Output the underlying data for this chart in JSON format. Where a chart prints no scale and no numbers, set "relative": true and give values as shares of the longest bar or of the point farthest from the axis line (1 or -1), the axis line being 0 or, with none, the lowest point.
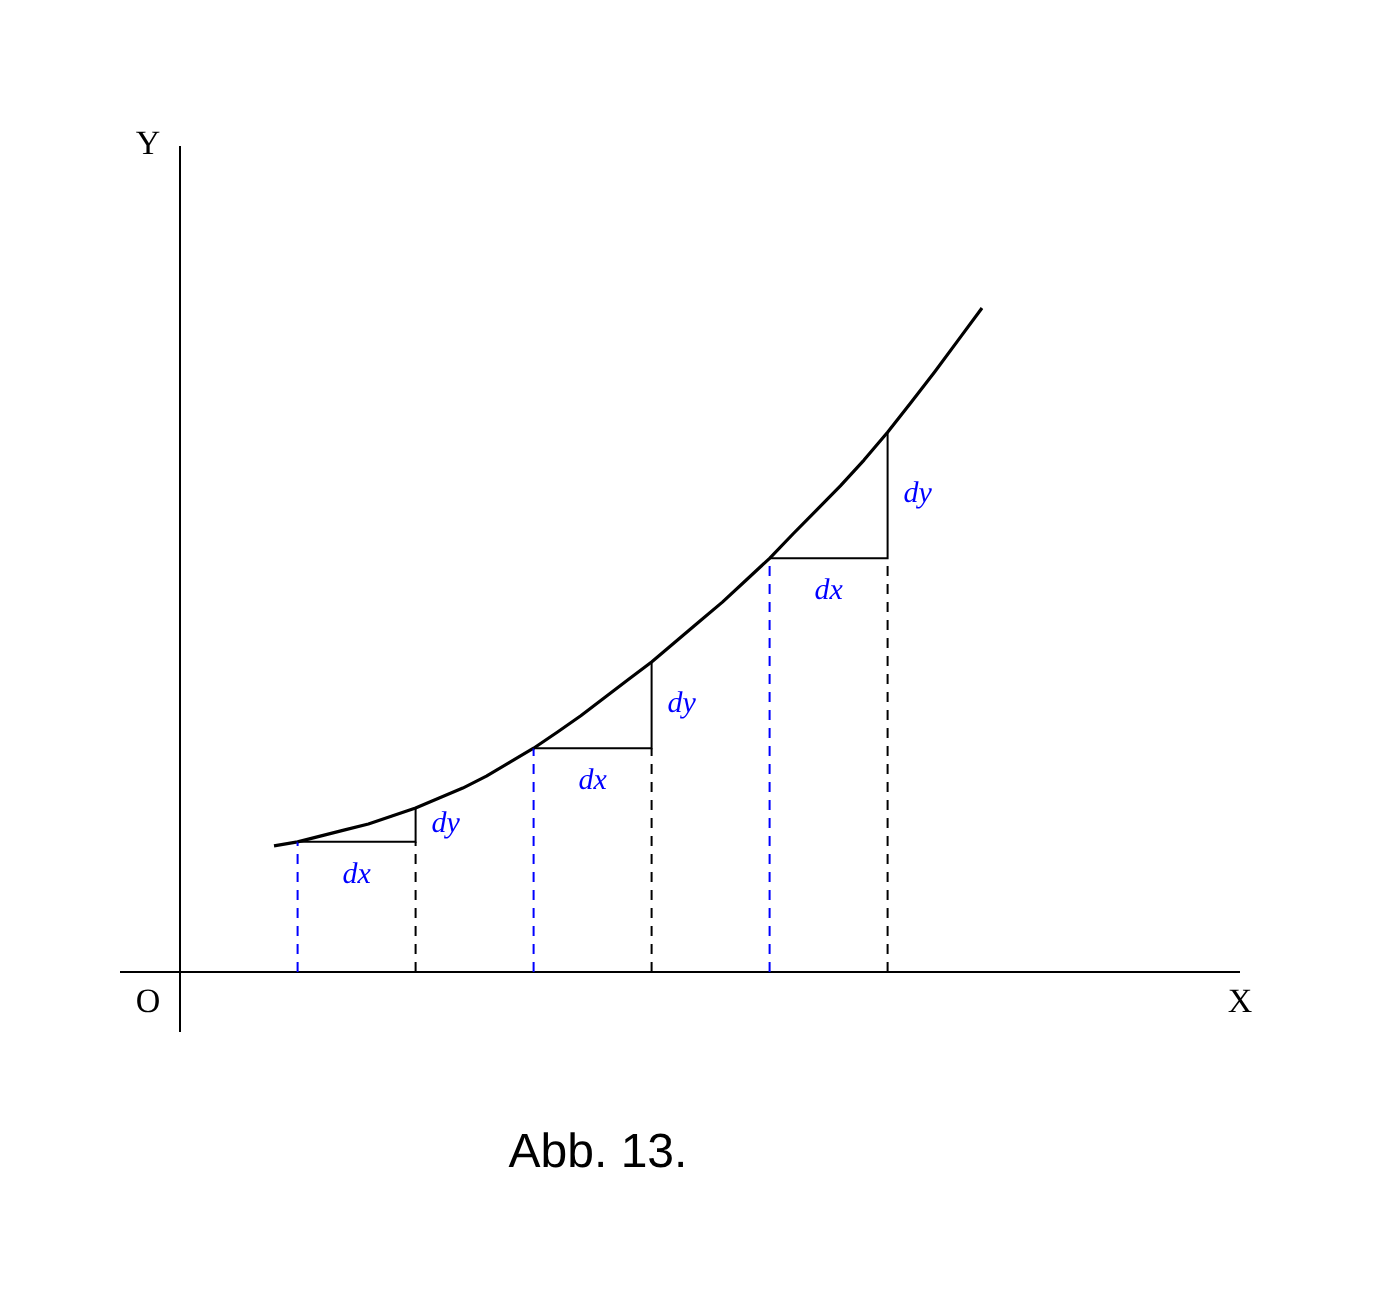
{
  "chart_data": {
    "type": "line",
    "relative": true,
    "legend": false,
    "marker": "none",
    "categories": [
      null,
      null,
      null,
      null,
      null,
      null,
      null,
      null,
      null,
      null,
      null,
      null,
      null,
      null,
      null,
      null,
      null,
      null,
      null,
      null,
      null,
      null,
      null,
      null,
      null,
      null,
      null,
      null,
      null,
      null,
      null
    ],
    "series": [
      {
        "color": "#000000",
        "values": [
          0.19,
          0.196,
          0.205,
          0.214,
          0.223,
          0.235,
          0.247,
          0.262,
          0.277,
          0.295,
          0.316,
          0.337,
          0.361,
          0.386,
          0.413,
          0.44,
          0.467,
          0.497,
          0.527,
          0.557,
          0.59,
          0.623,
          0.66,
          0.696,
          0.732,
          0.771,
          0.813,
          0.858,
          0.904,
          0.952,
          1
        ]
      }
    ],
    "annotations": [
      "dx",
      "dy",
      "dx",
      "dy",
      "dx",
      "dy",
      "Y",
      "O",
      "X",
      "Abb. 13."
    ]
  }
}
